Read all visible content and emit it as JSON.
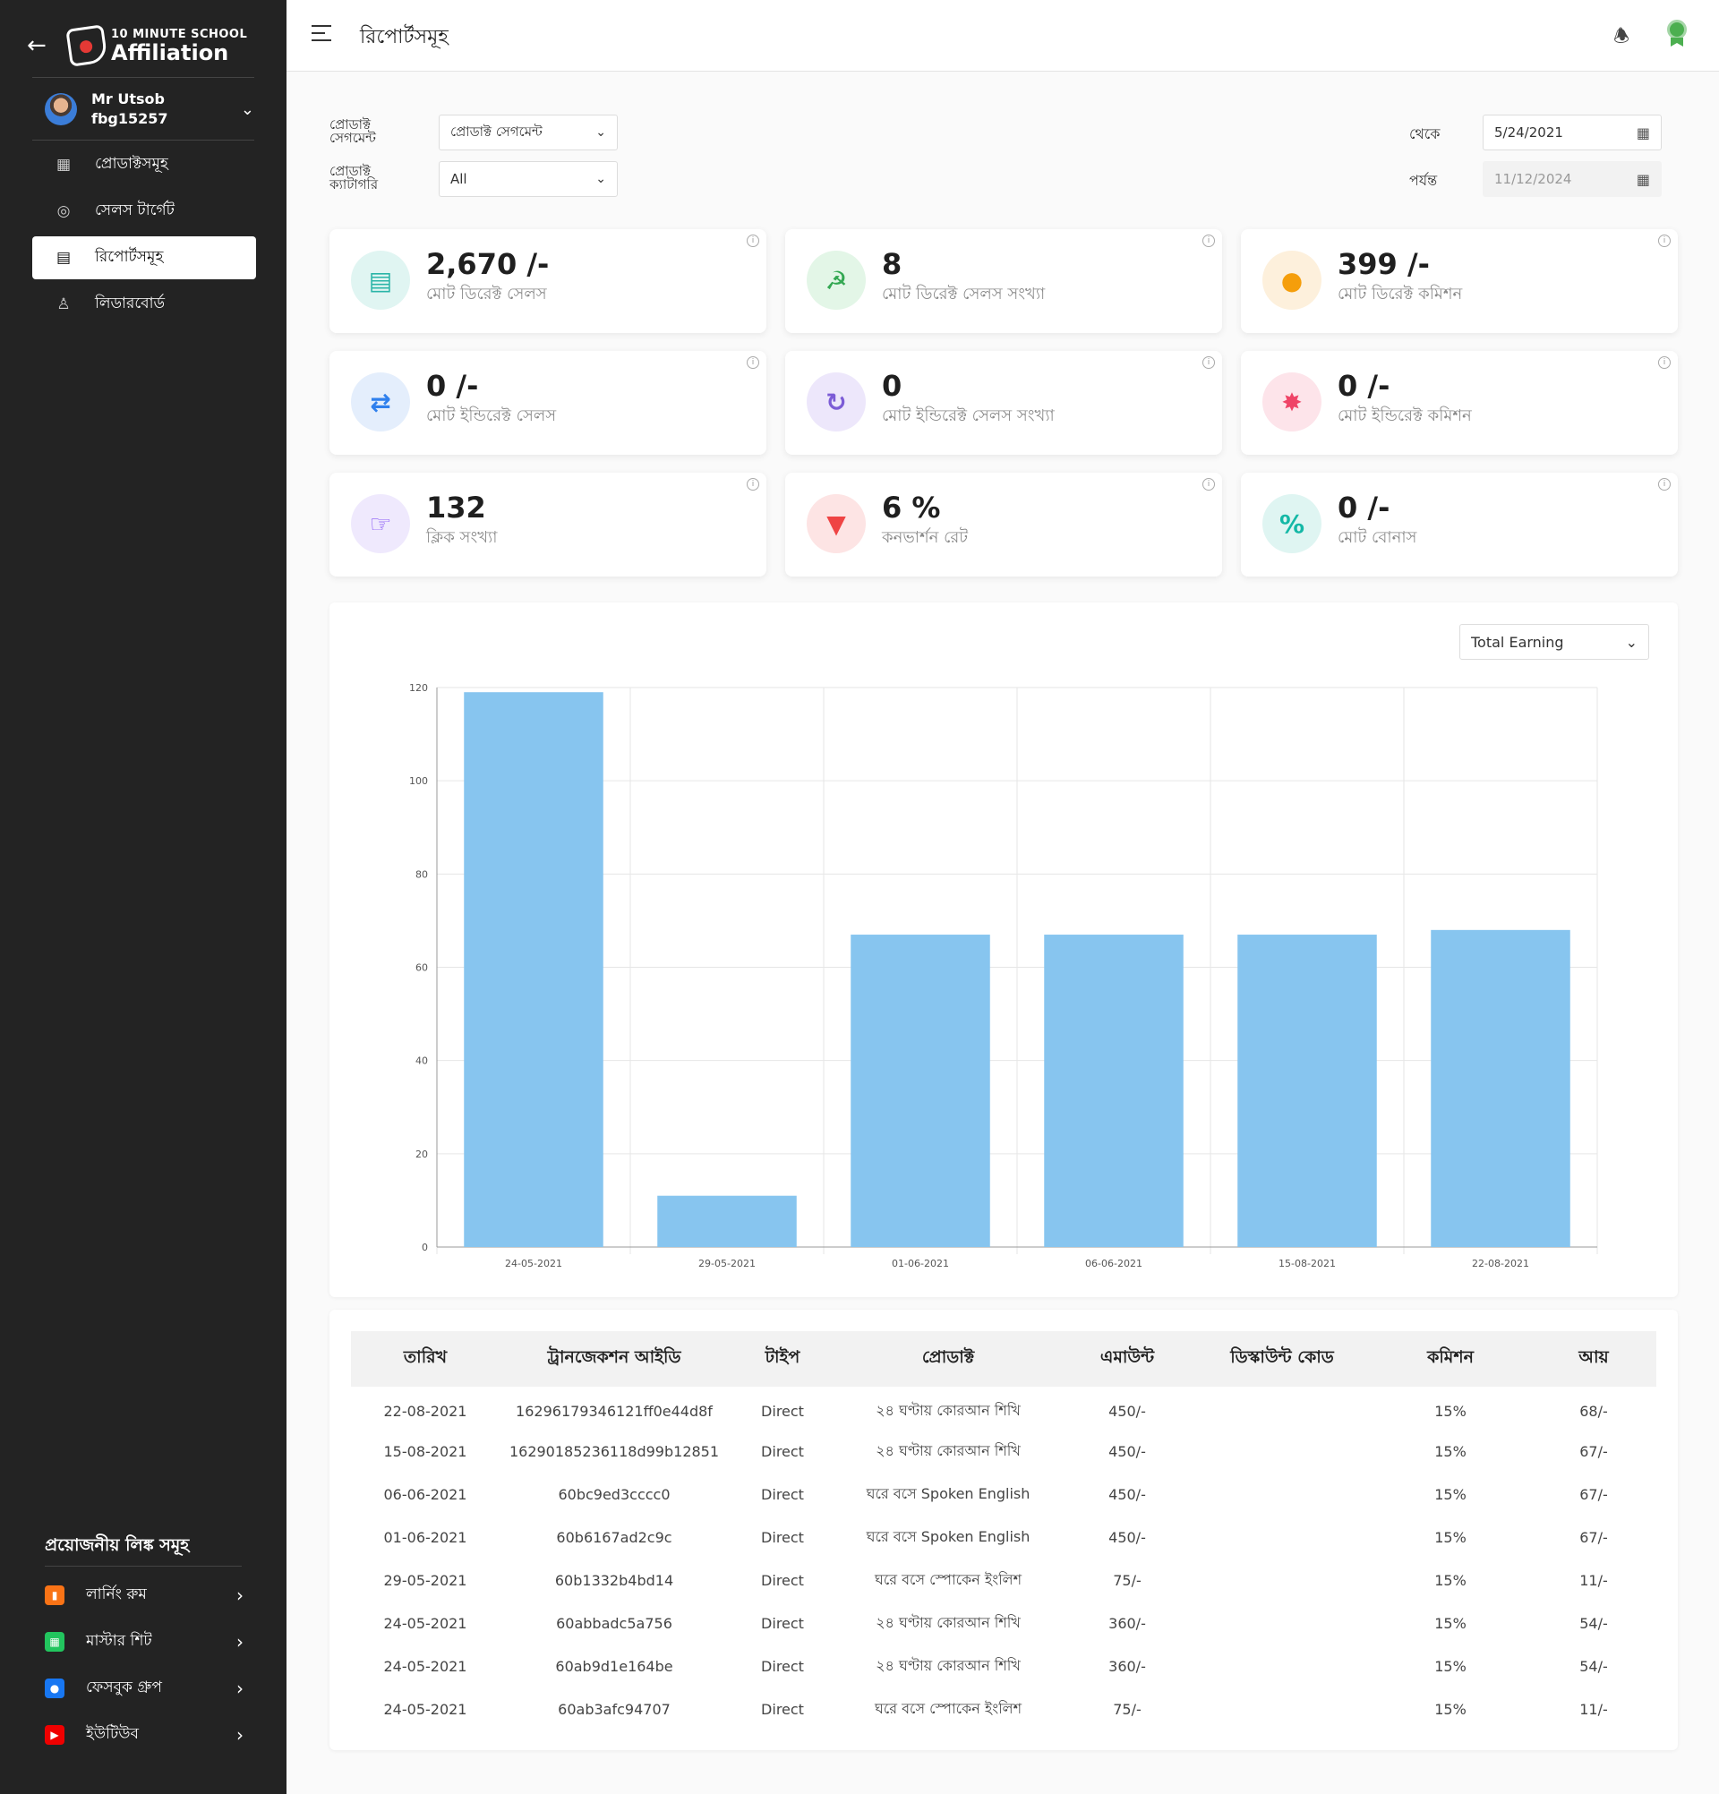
{
  "sidebar": {
    "logo_top": "10 MINUTE SCHOOL",
    "logo_main": "Affiliation",
    "user": {
      "name": "Mr Utsob",
      "id": "fbg15257"
    },
    "nav": [
      {
        "label": "প্রোডাক্টসমূহ",
        "icon": "grid-icon"
      },
      {
        "label": "সেলস টার্গেট",
        "icon": "target-icon"
      },
      {
        "label": "রিপোর্টসমূহ",
        "icon": "report-icon",
        "active": true
      },
      {
        "label": "লিডারবোর্ড",
        "icon": "leaderboard-icon"
      }
    ],
    "links_title": "প্রয়োজনীয় লিঙ্ক সমূহ",
    "links": [
      {
        "label": "লার্নিং রুম",
        "icon": "book-icon",
        "color": "#f97316"
      },
      {
        "label": "মাস্টার শিট",
        "icon": "sheet-icon",
        "color": "#22c55e"
      },
      {
        "label": "ফেসবুক গ্রুপ",
        "icon": "group-icon",
        "color": "#1877f2"
      },
      {
        "label": "ইউটিউব",
        "icon": "youtube-icon",
        "color": "#ef0000"
      }
    ]
  },
  "header": {
    "title": "রিপোর্টসমূহ"
  },
  "filters": {
    "segment_label": "প্রোডাক্ট সেগমেন্ট",
    "segment_value": "প্রোডাক্ট সেগমেন্ট",
    "category_label": "প্রোডাক্ট ক্যাটাগরি",
    "category_value": "All",
    "from_label": "থেকে",
    "from_value": "5/24/2021",
    "to_label": "পর্যন্ত",
    "to_value": "11/12/2024"
  },
  "stats": [
    {
      "value": "2,670 /-",
      "label": "মোট ডিরেক্ট সেলস",
      "icon": "chart-up-icon",
      "color": "#2bb5a8",
      "bg": "#e0f5f2"
    },
    {
      "value": "8",
      "label": "মোট ডিরেক্ট সেলস সংখ্যা",
      "icon": "handshake-icon",
      "color": "#34a853",
      "bg": "#e3f6e7"
    },
    {
      "value": "399 /-",
      "label": "মোট ডিরেক্ট কমিশন",
      "icon": "taka-coin-icon",
      "color": "#f59e0b",
      "bg": "#fdf0dc"
    },
    {
      "value": "0 /-",
      "label": "মোট ইন্ডিরেক্ট সেলস",
      "icon": "exchange-icon",
      "color": "#2f80ed",
      "bg": "#e4eefc"
    },
    {
      "value": "0",
      "label": "মোট ইন্ডিরেক্ট সেলস সংখ্যা",
      "icon": "taka-cycle-icon",
      "color": "#7c5cd6",
      "bg": "#ede7fb"
    },
    {
      "value": "0 /-",
      "label": "মোট ইন্ডিরেক্ট কমিশন",
      "icon": "taka-badge-icon",
      "color": "#ef4467",
      "bg": "#fde4ea"
    },
    {
      "value": "132",
      "label": "ক্লিক সংখ্যা",
      "icon": "click-icon",
      "color": "#8b5cf6",
      "bg": "#efe9fd"
    },
    {
      "value": "6 %",
      "label": "কনভার্শন রেট",
      "icon": "funnel-icon",
      "color": "#ef4444",
      "bg": "#fde4e4"
    },
    {
      "value": "0 /-",
      "label": "মোট বোনাস",
      "icon": "percent-badge-icon",
      "color": "#14b8a6",
      "bg": "#dff5f2"
    }
  ],
  "chart_select": "Total Earning",
  "chart_data": {
    "type": "bar",
    "categories": [
      "24-05-2021",
      "29-05-2021",
      "01-06-2021",
      "06-06-2021",
      "15-08-2021",
      "22-08-2021"
    ],
    "values": [
      119,
      11,
      67,
      67,
      67,
      68
    ],
    "ylim": [
      0,
      120
    ],
    "yticks": [
      0,
      20,
      40,
      60,
      80,
      100,
      120
    ],
    "grid": true,
    "bar_color": "#87c5ef"
  },
  "table": {
    "headers": [
      "তারিখ",
      "ট্রানজেকশন আইডি",
      "টাইপ",
      "প্রোডাক্ট",
      "এমাউন্ট",
      "ডিস্কাউন্ট কোড",
      "কমিশন",
      "আয়"
    ],
    "rows": [
      [
        "22-08-2021",
        "16296179346121ff0e44d8f",
        "Direct",
        "২৪ ঘণ্টায় কোরআন শিখি",
        "450/-",
        "",
        "15%",
        "68/-"
      ],
      [
        "15-08-2021",
        "16290185236118d99b12851",
        "Direct",
        "২৪ ঘণ্টায় কোরআন শিখি",
        "450/-",
        "",
        "15%",
        "67/-"
      ],
      [
        "06-06-2021",
        "60bc9ed3cccc0",
        "Direct",
        "ঘরে বসে Spoken English",
        "450/-",
        "",
        "15%",
        "67/-"
      ],
      [
        "01-06-2021",
        "60b6167ad2c9c",
        "Direct",
        "ঘরে বসে Spoken English",
        "450/-",
        "",
        "15%",
        "67/-"
      ],
      [
        "29-05-2021",
        "60b1332b4bd14",
        "Direct",
        "ঘরে বসে স্পোকেন ইংলিশ",
        "75/-",
        "",
        "15%",
        "11/-"
      ],
      [
        "24-05-2021",
        "60abbadc5a756",
        "Direct",
        "২৪ ঘণ্টায় কোরআন শিখি",
        "360/-",
        "",
        "15%",
        "54/-"
      ],
      [
        "24-05-2021",
        "60ab9d1e164be",
        "Direct",
        "২৪ ঘণ্টায় কোরআন শিখি",
        "360/-",
        "",
        "15%",
        "54/-"
      ],
      [
        "24-05-2021",
        "60ab3afc94707",
        "Direct",
        "ঘরে বসে স্পোকেন ইংলিশ",
        "75/-",
        "",
        "15%",
        "11/-"
      ]
    ]
  }
}
